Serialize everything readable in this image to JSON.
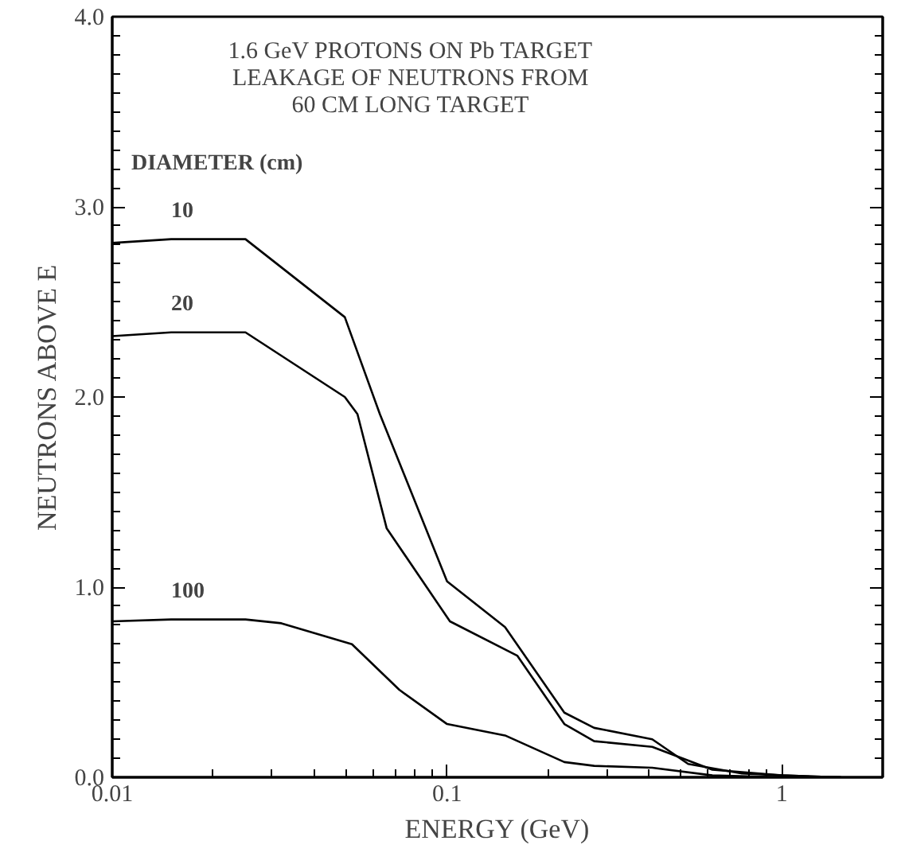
{
  "chart_data": {
    "type": "line",
    "title": "1.6 GeV PROTONS ON Pb TARGET\nLEAKAGE OF NEUTRONS FROM\n60 CM LONG TARGET",
    "xlabel": "ENERGY (GeV)",
    "ylabel": "NEUTRONS ABOVE E",
    "log": "x",
    "xlim": [
      0.01,
      2
    ],
    "xticks": [
      0.01,
      0.1,
      1
    ],
    "ylim": [
      0,
      4
    ],
    "yticks": [
      {
        "value": 0,
        "label": "0.0"
      },
      {
        "value": 1,
        "label": "1.0"
      },
      {
        "value": 2,
        "label": "2.0"
      },
      {
        "value": 3,
        "label": "3.0"
      },
      {
        "value": 4,
        "label": "4.0"
      }
    ],
    "grid": false,
    "marker": "none",
    "line_style": "solid",
    "legend_title": "DIAMETER (cm)",
    "series": [
      {
        "name": "10",
        "color": "#000000",
        "x": [
          0.01,
          0.015,
          0.025,
          0.0495,
          0.063,
          0.1,
          0.149,
          0.224,
          0.275,
          0.41,
          0.525,
          0.76,
          1.0,
          1.5
        ],
        "values": [
          2.81,
          2.83,
          2.83,
          2.42,
          1.91,
          1.03,
          0.79,
          0.34,
          0.26,
          0.2,
          0.07,
          0.02,
          0.01,
          0.0
        ]
      },
      {
        "name": "20",
        "color": "#000000",
        "x": [
          0.01,
          0.015,
          0.025,
          0.0495,
          0.054,
          0.066,
          0.102,
          0.162,
          0.224,
          0.275,
          0.41,
          0.62,
          1.0,
          1.5
        ],
        "values": [
          2.32,
          2.34,
          2.34,
          2.0,
          1.91,
          1.31,
          0.82,
          0.64,
          0.28,
          0.19,
          0.16,
          0.04,
          0.01,
          0.0
        ]
      },
      {
        "name": "100",
        "color": "#000000",
        "x": [
          0.01,
          0.015,
          0.025,
          0.032,
          0.052,
          0.072,
          0.1,
          0.149,
          0.224,
          0.275,
          0.41,
          0.62,
          1.0,
          1.5
        ],
        "values": [
          0.82,
          0.83,
          0.83,
          0.81,
          0.7,
          0.46,
          0.28,
          0.22,
          0.08,
          0.06,
          0.05,
          0.01,
          0.0,
          0.0
        ]
      }
    ]
  }
}
